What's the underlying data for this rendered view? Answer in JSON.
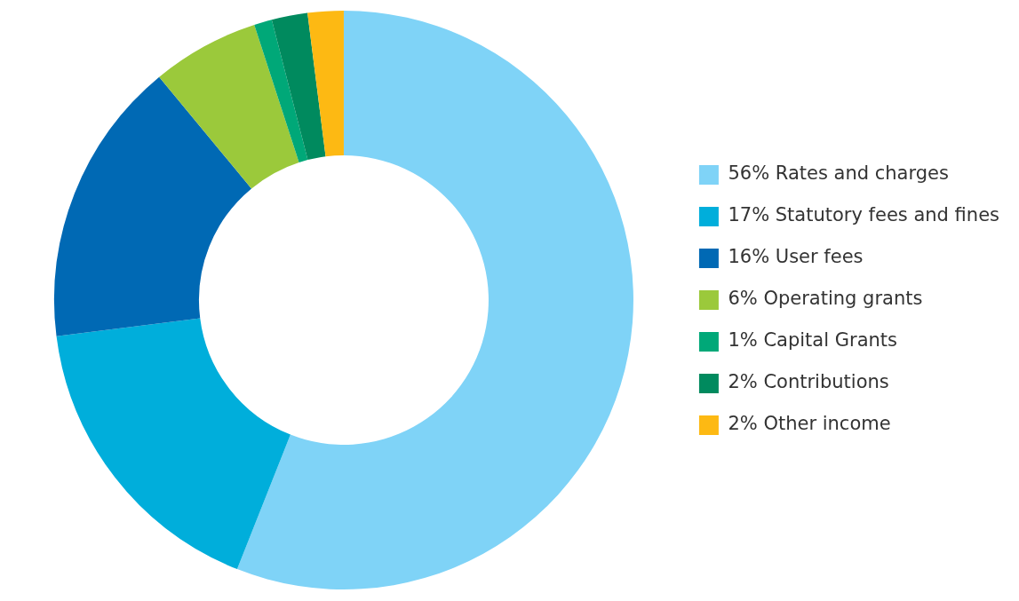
{
  "chart_data": {
    "type": "donut",
    "categories": [
      "Rates and charges",
      "Statutory fees and fines",
      "User fees",
      "Operating grants",
      "Capital Grants",
      "Contributions",
      "Other income"
    ],
    "values": [
      56,
      17,
      16,
      6,
      1,
      2,
      2
    ],
    "value_labels": [
      "56%",
      "17%",
      "16%",
      "6%",
      "1%",
      "2%",
      "2%"
    ],
    "colors": [
      "#7fd3f7",
      "#00aedb",
      "#0069b4",
      "#9bc93b",
      "#00a878",
      "#008a5e",
      "#fdb913"
    ],
    "legend": "right"
  }
}
